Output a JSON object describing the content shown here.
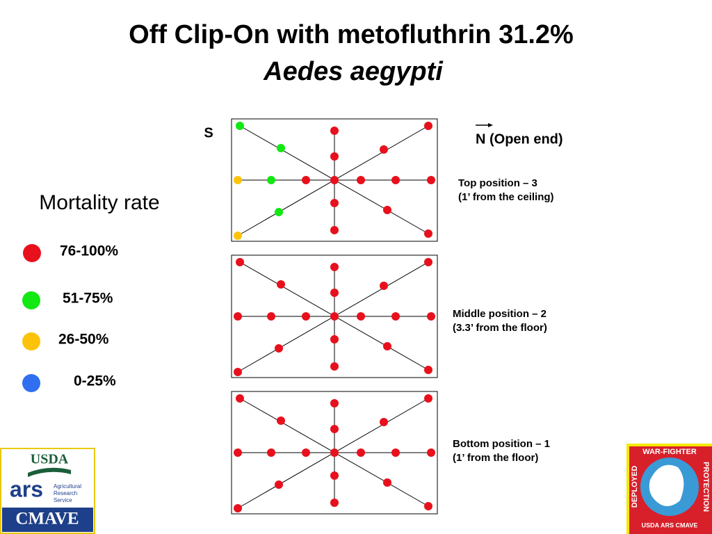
{
  "header": {
    "title": "Off Clip-On with  metofluthrin 31.2%",
    "subtitle": "Aedes aegypti"
  },
  "legend": {
    "title": "Mortality rate",
    "items": [
      {
        "label": "76-100%",
        "color": "#e8101c"
      },
      {
        "label": "51-75%",
        "color": "#12e812"
      },
      {
        "label": "26-50%",
        "color": "#fcc30a"
      },
      {
        "label": "0-25%",
        "color": "#2f6ff0"
      }
    ]
  },
  "compass": {
    "south": "S",
    "north": "N (Open end)"
  },
  "panels": [
    {
      "line1": "Top position – 3",
      "line2": "(1’ from the ceiling)",
      "dots": [
        "#12e812",
        "#12e812",
        "#e8101c",
        "#e8101c",
        "#e8101c",
        "#e8101c",
        "#fcc30a",
        "#12e812",
        "#e8101c",
        "#e8101c",
        "#e8101c",
        "#e8101c",
        "#e8101c",
        "#12e812",
        "#fcc30a",
        "#e8101c",
        "#e8101c",
        "#e8101c",
        "#e8101c"
      ]
    },
    {
      "line1": "Middle position – 2",
      "line2": "(3.3’ from the floor)",
      "dots": [
        "#e8101c",
        "#e8101c",
        "#e8101c",
        "#e8101c",
        "#e8101c",
        "#e8101c",
        "#e8101c",
        "#e8101c",
        "#e8101c",
        "#e8101c",
        "#e8101c",
        "#e8101c",
        "#e8101c",
        "#e8101c",
        "#e8101c",
        "#e8101c",
        "#e8101c",
        "#e8101c",
        "#e8101c"
      ]
    },
    {
      "line1": "Bottom position – 1",
      "line2": "(1’ from the floor)",
      "dots": [
        "#e8101c",
        "#e8101c",
        "#e8101c",
        "#e8101c",
        "#e8101c",
        "#e8101c",
        "#e8101c",
        "#e8101c",
        "#e8101c",
        "#e8101c",
        "#e8101c",
        "#e8101c",
        "#e8101c",
        "#e8101c",
        "#e8101c",
        "#e8101c",
        "#e8101c",
        "#e8101c",
        "#e8101c"
      ]
    }
  ],
  "logos": {
    "left": {
      "usda": "USDA",
      "ars": "ars",
      "line1": "Agricultural",
      "line2": "Research",
      "line3": "Service",
      "cmave": "CMAVE"
    },
    "right": {
      "top": "WAR-FIGHTER",
      "left": "DEPLOYED",
      "rightside": "PROTECTION",
      "bottom": "USDA  ARS  CMAVE"
    }
  }
}
